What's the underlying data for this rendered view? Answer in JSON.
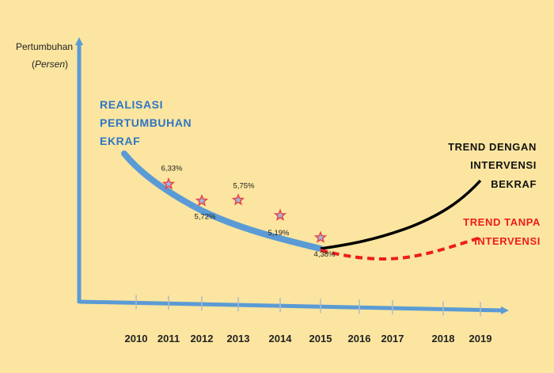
{
  "chart_data": {
    "type": "line",
    "ylabel": "Pertumbuhan",
    "ylabel_unit": "Persen",
    "categories": [
      "2010",
      "2011",
      "2012",
      "2013",
      "2014",
      "2015",
      "2016",
      "2017",
      "2018",
      "2019"
    ],
    "series": [
      {
        "name": "REALISASI PERTUMBUHAN EKRAF",
        "color": "#5b9bd5",
        "x": [
          "2011",
          "2012",
          "2013",
          "2014",
          "2015"
        ],
        "values": [
          6.33,
          5.72,
          5.75,
          5.19,
          4.38
        ],
        "labels": [
          "6,33%",
          "5,72%",
          "5,75%",
          "5,19%",
          "4,38%"
        ]
      },
      {
        "name": "TREND DENGAN INTERVENSI BEKRAF",
        "color": "#000000",
        "style": "solid"
      },
      {
        "name": "TREND TANPA INTERVENSI",
        "color": "#ee1c1c",
        "style": "dashed"
      }
    ],
    "annotations": {
      "realisasi": [
        "REALISASI",
        "PERTUMBUHAN",
        "EKRAF"
      ],
      "dengan": [
        "TREND DENGAN",
        "INTERVENSI",
        "BEKRAF"
      ],
      "tanpa": [
        "TREND TANPA",
        "INTERVENSI"
      ]
    },
    "axis_color": "#5b9bd5",
    "grid": false,
    "marker": "star",
    "marker_color": "#e8444a"
  }
}
